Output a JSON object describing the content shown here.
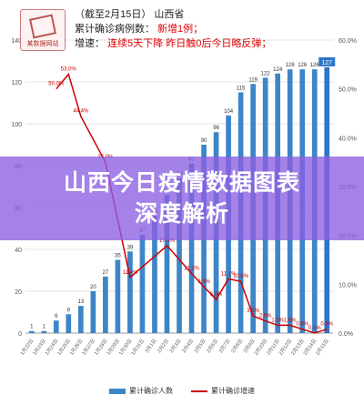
{
  "header": {
    "line1_prefix": "（截至2月15日）",
    "line1_region": "山西省",
    "line2_label": "累计确诊病例数：",
    "line2_value": "新增1例；",
    "line3_label": "增速：",
    "line3_value": "连续5天下降  昨日触0后今日略反弹；"
  },
  "logo_text": "某数据网站",
  "banner": {
    "line1": "山西今日疫情数据图表",
    "line2": "深度解析"
  },
  "colors": {
    "bar": "#3d85c6",
    "bar_highlight": "#2f75c7",
    "line": "#cc0000"
  },
  "chart_data": {
    "type": "bar",
    "categories": [
      "1月22日",
      "1月23日",
      "1月24日",
      "1月25日",
      "1月26日",
      "1月27日",
      "1月28日",
      "1月29日",
      "1月30日",
      "1月31日",
      "2月1日",
      "2月2日",
      "2月3日",
      "2月4日",
      "2月5日",
      "2月6日",
      "2月7日",
      "2月8日",
      "2月9日",
      "2月10日",
      "2月11日",
      "2月12日",
      "2月13日",
      "2月14日",
      "2月15日"
    ],
    "series": [
      {
        "name": "累计确诊人数",
        "axis": "left",
        "values": [
          1,
          1,
          6,
          9,
          13,
          20,
          27,
          35,
          39,
          47,
          56,
          66,
          74,
          81,
          90,
          96,
          104,
          115,
          119,
          122,
          124,
          126,
          126,
          126,
          127
        ]
      },
      {
        "name": "累计确诊增速",
        "axis": "right",
        "values": [
          null,
          null,
          50.0,
          53.0,
          44.4,
          null,
          35.0,
          null,
          11.4,
          null,
          null,
          17.9,
          null,
          12.2,
          9.5,
          6.9,
          11.1,
          10.6,
          3.5,
          2.5,
          1.6,
          1.6,
          0.8,
          0.0,
          0.8
        ]
      }
    ],
    "bar_labels": [
      "1",
      "1",
      "6",
      "9",
      "13",
      "20",
      "27",
      "35",
      "39",
      "47",
      "56",
      "66",
      "74",
      "81",
      "90",
      "96",
      "104",
      "115",
      "119",
      "122",
      "124",
      "126",
      "126",
      "126",
      "127"
    ],
    "line_labels": [
      "",
      "",
      "50.0%",
      "53.0%",
      "44.4%",
      "",
      "35.0%",
      "",
      "11.4%",
      "",
      "",
      "17.9%",
      "",
      "12.2%",
      "9.5%",
      "6.9%",
      "11.1%",
      "10.6%",
      "3.5%",
      "2.5%",
      "1.6%",
      "1.6%",
      "0.8%",
      "0.0%",
      "0.8%"
    ],
    "y_left": {
      "min": 0,
      "max": 140,
      "ticks": [
        "0",
        "20",
        "40",
        "60",
        "80",
        "100",
        "120",
        "140"
      ]
    },
    "y_right": {
      "min": 0,
      "max": 60,
      "ticks": [
        "0.0%",
        "10.0%",
        "20.0%",
        "30.0%",
        "40.0%",
        "50.0%",
        "60.0%"
      ]
    },
    "grid": true,
    "legend": [
      "累计确诊人数",
      "累计确诊增速"
    ],
    "legend_position": "bottom"
  }
}
